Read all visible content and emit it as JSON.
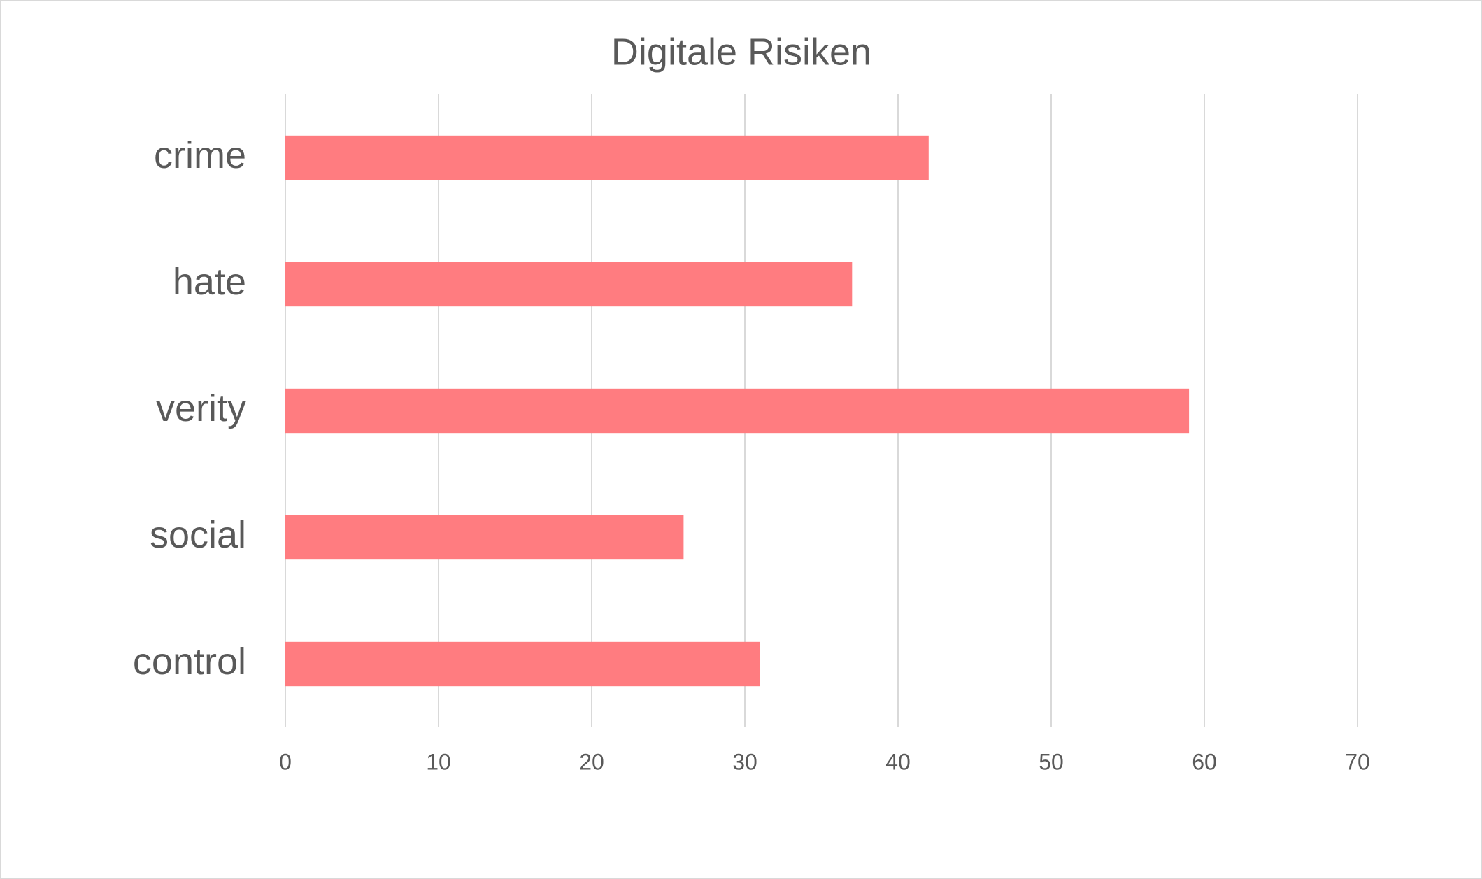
{
  "chart_data": {
    "type": "bar",
    "orientation": "horizontal",
    "title": "Digitale Risiken",
    "categories": [
      "crime",
      "hate",
      "verity",
      "social",
      "control"
    ],
    "values": [
      42,
      37,
      59,
      26,
      31
    ],
    "color": "#ff7c80",
    "xlim": [
      0,
      70
    ],
    "xticks": [
      0,
      10,
      20,
      30,
      40,
      50,
      60,
      70
    ],
    "grid": true
  }
}
